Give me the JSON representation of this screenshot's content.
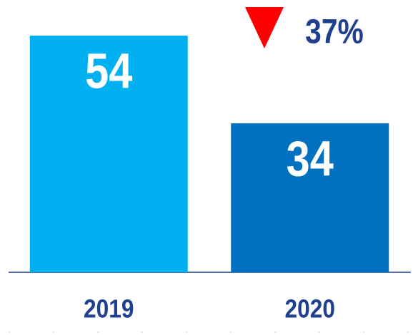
{
  "chart_data": {
    "type": "bar",
    "categories": [
      "2019",
      "2020"
    ],
    "values": [
      54,
      34
    ],
    "colors": [
      "#00B0F0",
      "#0070C0"
    ],
    "annotation": "37%"
  }
}
